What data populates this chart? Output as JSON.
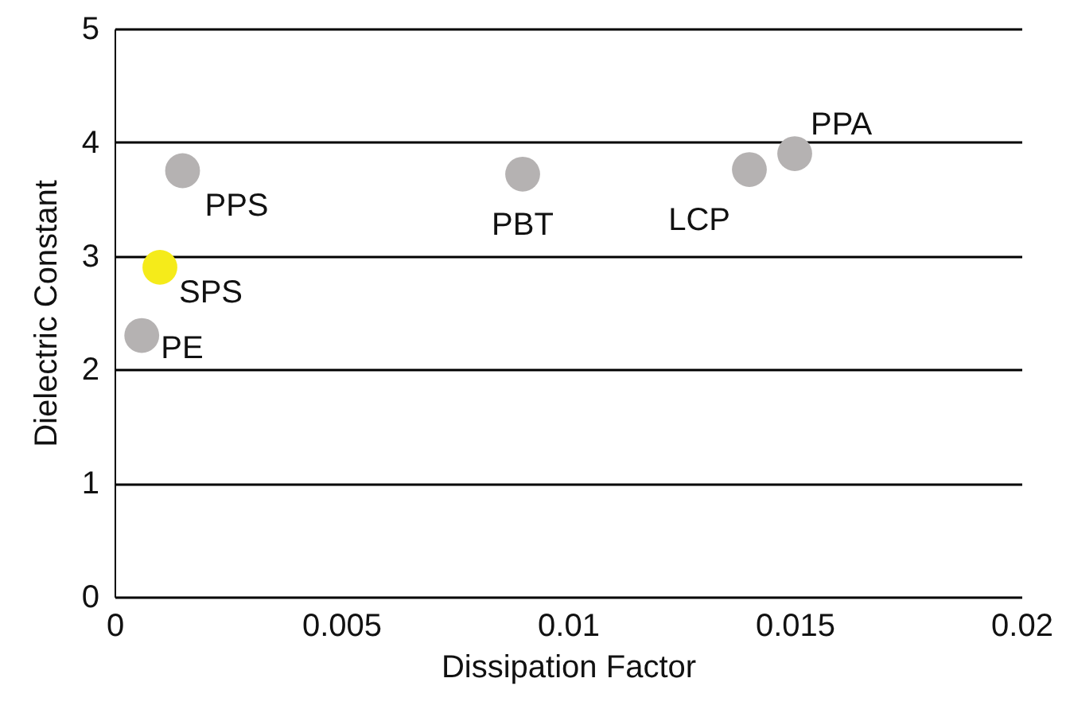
{
  "chart_data": {
    "type": "scatter",
    "xlabel": "Dissipation Factor",
    "ylabel": "Dielectric Constant",
    "x": [
      0.0015,
      0.001,
      0.0006,
      0.009,
      0.014,
      0.015
    ],
    "series": [
      {
        "values": [
          3.75,
          2.9,
          2.3,
          3.72,
          3.76,
          3.9
        ],
        "colors": [
          "#b5b2b2",
          "#f5eb1a",
          "#b5b2b2",
          "#b5b2b2",
          "#b5b2b2",
          "#b5b2b2"
        ]
      }
    ],
    "annotations": [
      {
        "text": "PPS",
        "x": 0.0015,
        "y": 3.75
      },
      {
        "text": "SPS",
        "x": 0.001,
        "y": 2.9
      },
      {
        "text": "PE",
        "x": 0.0006,
        "y": 2.3
      },
      {
        "text": "PBT",
        "x": 0.009,
        "y": 3.72
      },
      {
        "text": "LCP",
        "x": 0.014,
        "y": 3.76
      },
      {
        "text": "PPA",
        "x": 0.015,
        "y": 3.9
      }
    ],
    "xlim": [
      0,
      0.02
    ],
    "xticks": [
      0,
      0.005,
      0.01,
      0.015,
      0.02
    ],
    "ylim": [
      0,
      5
    ],
    "yticks": [
      0,
      1,
      2,
      3,
      4,
      5
    ],
    "grid": "y"
  }
}
